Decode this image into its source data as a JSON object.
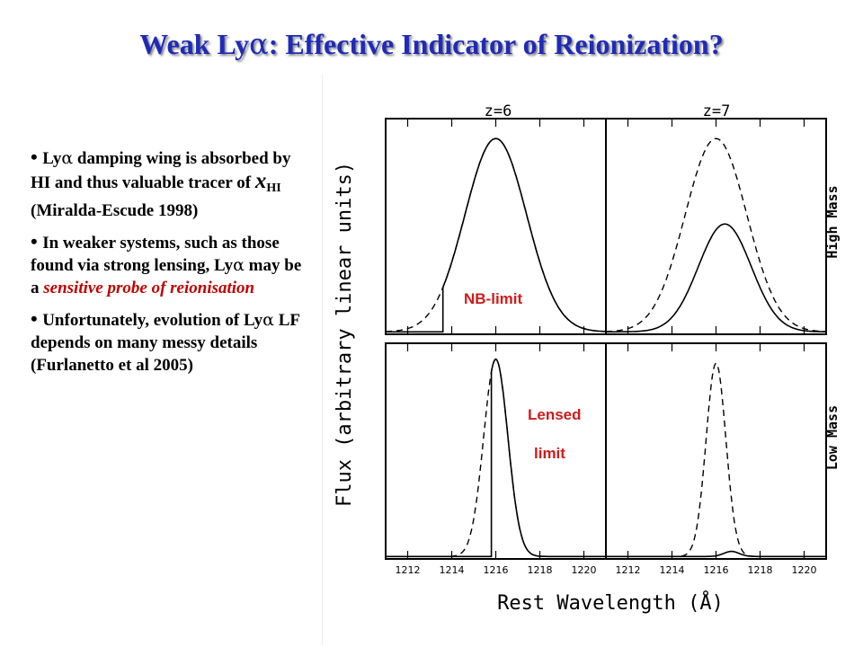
{
  "slide": {
    "title_prefix": "Weak Ly",
    "title_alpha": "α",
    "title_suffix": ": Effective Indicator of Reionization?"
  },
  "bullets": [
    {
      "p1": "Ly",
      "a1": "α",
      "p2": " damping wing is absorbed by HI and thus valuable tracer of ",
      "x": "x",
      "sub": "HI",
      "p3": " (Miralda-Escude 1998)"
    },
    {
      "p1": "In weaker systems, such as those found via strong lensing, Ly",
      "a1": "α",
      "p2": " may be a ",
      "red": "sensitive probe of reionisation"
    },
    {
      "p1": "Unfortunately, evolution of Ly",
      "a1": "α",
      "p2": " LF depends on many messy details (Furlanetto et al 2005)"
    }
  ],
  "figure": {
    "col_labels": [
      "z=6",
      "z=7"
    ],
    "row_labels": [
      "High Mass",
      "Low Mass"
    ],
    "ylabel": "Flux (arbitrary linear units)",
    "xlabel": "Rest Wavelength (Å)",
    "overlay_nb": "NB-limit",
    "overlay_lensed_1": "Lensed",
    "overlay_lensed_2": "limit"
  },
  "chart_data": [
    {
      "type": "line",
      "panel": "z=6, High Mass",
      "xlim": [
        1211,
        1221
      ],
      "ylim": [
        0,
        1.06
      ],
      "xticks": [
        1212,
        1214,
        1216,
        1218,
        1220
      ],
      "series": [
        {
          "style": "dashed",
          "peak_x": 1216.0,
          "sigma": 1.4,
          "amplitude": 0.95
        },
        {
          "style": "solid",
          "peak_x": 1216.0,
          "sigma": 1.4,
          "amplitude": 0.95,
          "cutoff_x": 1213.6
        }
      ]
    },
    {
      "type": "line",
      "panel": "z=7, High Mass",
      "xlim": [
        1211,
        1221
      ],
      "ylim": [
        0,
        1.06
      ],
      "xticks": [
        1212,
        1214,
        1216,
        1218,
        1220
      ],
      "series": [
        {
          "style": "dashed",
          "peak_x": 1216.0,
          "sigma": 1.4,
          "amplitude": 0.95
        },
        {
          "style": "solid",
          "peak_x": 1216.4,
          "sigma": 1.2,
          "amplitude": 0.53
        }
      ]
    },
    {
      "type": "line",
      "panel": "z=6, Low Mass",
      "xlim": [
        1211,
        1221
      ],
      "ylim": [
        0,
        1.06
      ],
      "xticks": [
        1212,
        1214,
        1216,
        1218,
        1220
      ],
      "series": [
        {
          "style": "dashed",
          "peak_x": 1216.0,
          "sigma": 0.55,
          "amplitude": 0.97
        },
        {
          "style": "solid",
          "peak_x": 1216.0,
          "sigma": 0.55,
          "amplitude": 0.97,
          "cutoff_x": 1215.8
        }
      ]
    },
    {
      "type": "line",
      "panel": "z=7, Low Mass",
      "xlim": [
        1211,
        1221
      ],
      "ylim": [
        0,
        1.06
      ],
      "xticks": [
        1212,
        1214,
        1216,
        1218,
        1220
      ],
      "series": [
        {
          "style": "dashed",
          "peak_x": 1216.0,
          "sigma": 0.45,
          "amplitude": 0.95
        },
        {
          "style": "solid",
          "peak_x": 1216.7,
          "sigma": 0.35,
          "amplitude": 0.025
        }
      ]
    }
  ]
}
